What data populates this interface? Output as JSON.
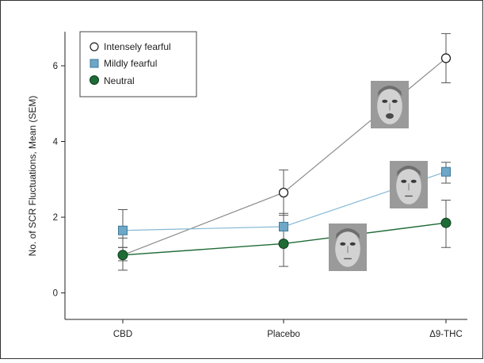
{
  "chart_data": {
    "type": "line",
    "categories": [
      "CBD",
      "Placebo",
      "Δ9-THC"
    ],
    "ylabel": "No. of SCR Fluctuations, Mean (SEM)",
    "xlabel": "",
    "ylim": [
      -0.7,
      6.9
    ],
    "yticks": [
      0,
      2,
      4,
      6
    ],
    "grid": false,
    "legend": "top-left",
    "series": [
      {
        "name": "Intensely fearful",
        "marker": "open-circle",
        "color": "#8a8a8a",
        "values": [
          1.0,
          2.65,
          6.2
        ],
        "err_low": [
          0.85,
          2.05,
          5.55
        ],
        "err_high": [
          1.2,
          3.25,
          6.85
        ]
      },
      {
        "name": "Mildly fearful",
        "marker": "square",
        "color": "#7fb4cf",
        "values": [
          1.65,
          1.75,
          3.2
        ],
        "err_low": [
          1.2,
          1.35,
          2.9
        ],
        "err_high": [
          2.2,
          2.1,
          3.45
        ]
      },
      {
        "name": "Neutral",
        "marker": "filled-circle",
        "color": "#1f6b36",
        "values": [
          1.0,
          1.3,
          1.85
        ],
        "err_low": [
          0.6,
          0.7,
          1.2
        ],
        "err_high": [
          1.45,
          1.85,
          2.45
        ]
      }
    ],
    "annotations": [
      {
        "type": "face-image",
        "series": "Intensely fearful"
      },
      {
        "type": "face-image",
        "series": "Mildly fearful"
      },
      {
        "type": "face-image",
        "series": "Neutral"
      }
    ]
  }
}
